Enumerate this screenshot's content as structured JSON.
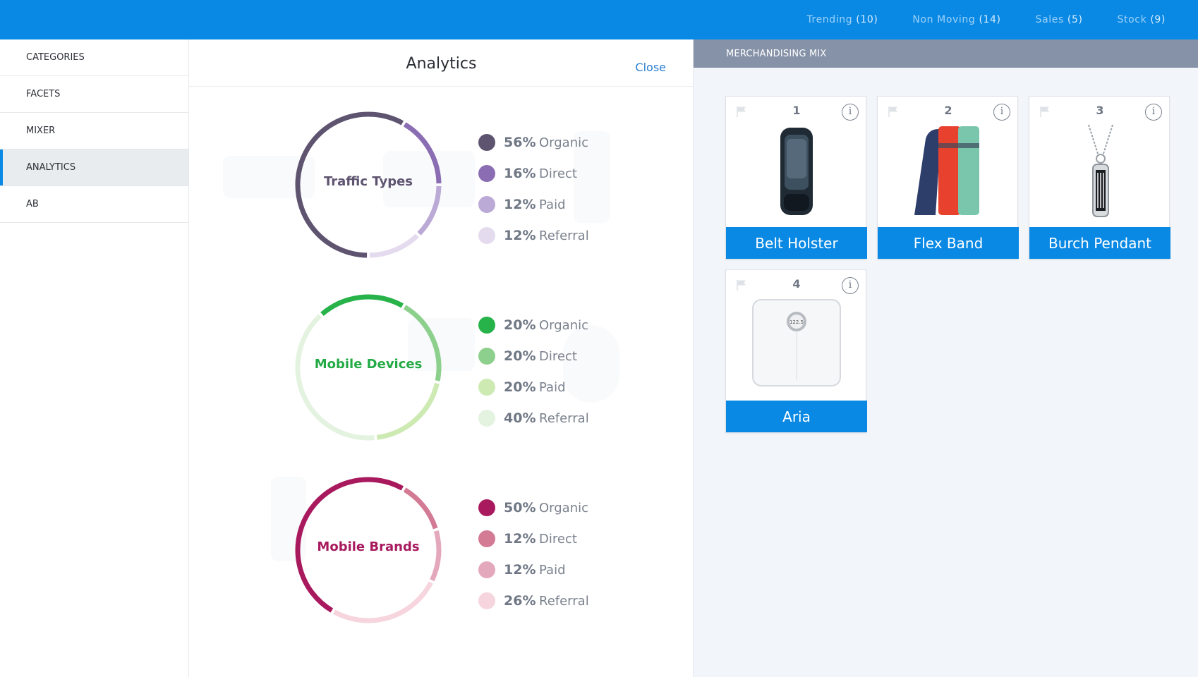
{
  "topnav": [
    {
      "label": "Trending",
      "count": "(10)"
    },
    {
      "label": "Non Moving",
      "count": "(14)"
    },
    {
      "label": "Sales",
      "count": "(5)"
    },
    {
      "label": "Stock",
      "count": "(9)"
    }
  ],
  "sidebar": {
    "items": [
      "CATEGORIES",
      "FACETS",
      "MIXER",
      "ANALYTICS",
      "AB"
    ],
    "active": "ANALYTICS"
  },
  "analytics": {
    "title": "Analytics",
    "close_label": "Close",
    "charts": [
      {
        "title": "Traffic Types",
        "title_color": "#5e5470",
        "segments": [
          {
            "value": 56,
            "pct": "56%",
            "label": "Organic",
            "color": "#5e5470"
          },
          {
            "value": 16,
            "pct": "16%",
            "label": "Direct",
            "color": "#8a6db3"
          },
          {
            "value": 12,
            "pct": "12%",
            "label": "Paid",
            "color": "#bba9d6"
          },
          {
            "value": 12,
            "pct": "12%",
            "label": "Referral",
            "color": "#e4dbef"
          }
        ]
      },
      {
        "title": "Mobile Devices",
        "title_color": "#22aa44",
        "segments": [
          {
            "value": 20,
            "pct": "20%",
            "label": "Organic",
            "color": "#27b24a"
          },
          {
            "value": 20,
            "pct": "20%",
            "label": "Direct",
            "color": "#8dd08d"
          },
          {
            "value": 20,
            "pct": "20%",
            "label": "Paid",
            "color": "#cdeab3"
          },
          {
            "value": 40,
            "pct": "40%",
            "label": "Referral",
            "color": "#e3f3e0"
          }
        ]
      },
      {
        "title": "Mobile Brands",
        "title_color": "#a8195e",
        "segments": [
          {
            "value": 50,
            "pct": "50%",
            "label": "Organic",
            "color": "#a8195e"
          },
          {
            "value": 12,
            "pct": "12%",
            "label": "Direct",
            "color": "#d37a95"
          },
          {
            "value": 12,
            "pct": "12%",
            "label": "Paid",
            "color": "#e4a8bc"
          },
          {
            "value": 26,
            "pct": "26%",
            "label": "Referral",
            "color": "#f6d5de"
          }
        ]
      }
    ]
  },
  "merch": {
    "header": "MERCHANDISING MIX",
    "cards": [
      {
        "num": "1",
        "name": "Belt Holster",
        "icon": "belt-holster-image"
      },
      {
        "num": "2",
        "name": "Flex Band",
        "icon": "flex-band-image"
      },
      {
        "num": "3",
        "name": "Burch Pendant",
        "icon": "burch-pendant-image"
      },
      {
        "num": "4",
        "name": "Aria",
        "icon": "aria-scale-image",
        "display": "122.5"
      }
    ]
  },
  "colors": {
    "brand": "#0a89e4",
    "merch_header": "#8592a7",
    "link": "#2a7fd4"
  }
}
